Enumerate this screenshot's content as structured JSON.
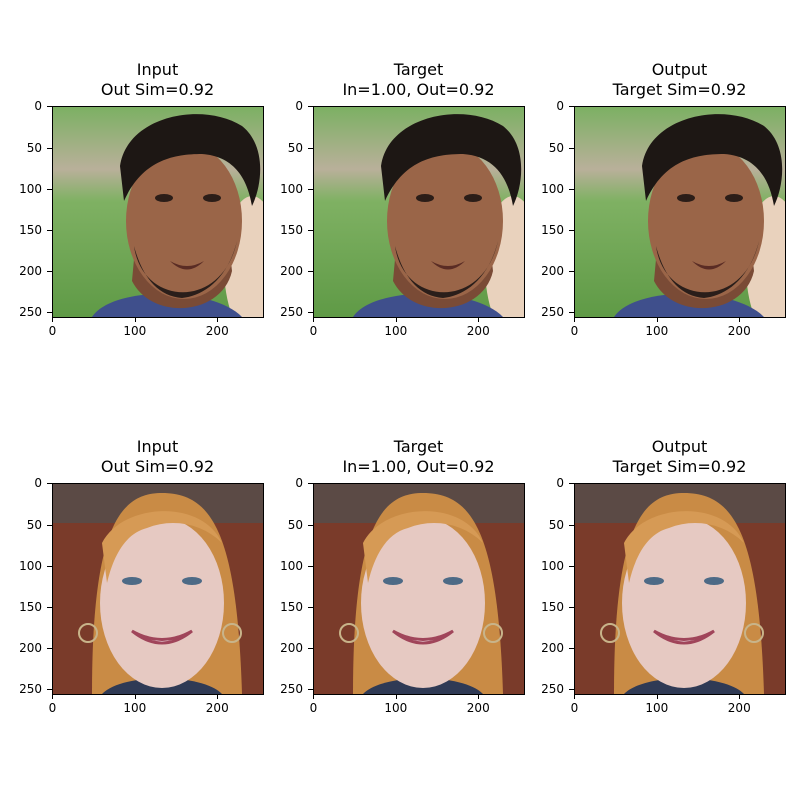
{
  "panels": [
    {
      "title_line1": "Input",
      "title_line2": "Out Sim=0.92"
    },
    {
      "title_line1": "Target",
      "title_line2": "In=1.00, Out=0.92"
    },
    {
      "title_line1": "Output",
      "title_line2": "Target Sim=0.92"
    },
    {
      "title_line1": "Input",
      "title_line2": "Out Sim=0.92"
    },
    {
      "title_line1": "Target",
      "title_line2": "In=1.00, Out=0.92"
    },
    {
      "title_line1": "Output",
      "title_line2": "Target Sim=0.92"
    }
  ],
  "axis": {
    "xticks": [
      "0",
      "100",
      "200"
    ],
    "yticks": [
      "0",
      "50",
      "100",
      "150",
      "200",
      "250"
    ]
  },
  "colors": {
    "grass": "#6fa85a",
    "skin_dark": "#9a6548",
    "hair_dark": "#1d1714",
    "shirt": "#3f4f8c",
    "bg_brick": "#7a3b2a",
    "hair_blonde": "#c98b45",
    "skin_light": "#e6c9c2"
  }
}
